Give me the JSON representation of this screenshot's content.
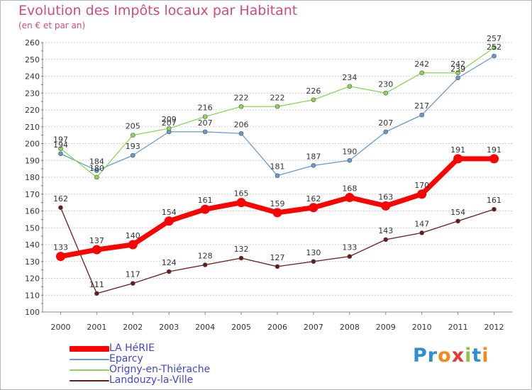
{
  "header": {
    "title": "Evolution des Impôts locaux par Habitant",
    "subtitle": "(en € et par an)"
  },
  "logo": {
    "text": "Proxiti",
    "letter_colors": [
      "#2b8fd1",
      "#2b8fd1",
      "#f08a1c",
      "#e53935",
      "#8cc63f",
      "#2b8fd1",
      "#f08a1c"
    ]
  },
  "chart_data": {
    "type": "line",
    "x": [
      "2000",
      "2001",
      "2002",
      "2003",
      "2004",
      "2005",
      "2006",
      "2007",
      "2008",
      "2009",
      "2010",
      "2011",
      "2012"
    ],
    "ylim": [
      100,
      260
    ],
    "yticks": [
      100,
      110,
      120,
      130,
      140,
      150,
      160,
      170,
      180,
      190,
      200,
      210,
      220,
      230,
      240,
      250,
      260
    ],
    "grid": "horizontal",
    "legend_position": "bottom-left",
    "series": [
      {
        "name": "LA HéRIE",
        "color": "#ff0000",
        "values": [
          133,
          137,
          140,
          154,
          161,
          165,
          159,
          162,
          168,
          163,
          170,
          191,
          191
        ]
      },
      {
        "name": "Eparcy",
        "color": "#6699cc",
        "values": [
          194,
          184,
          193,
          207,
          207,
          206,
          181,
          187,
          190,
          207,
          217,
          239,
          252
        ]
      },
      {
        "name": "Origny-en-Thiérache",
        "color": "#8cd45a",
        "values": [
          197,
          180,
          205,
          209,
          216,
          222,
          222,
          226,
          234,
          230,
          242,
          242,
          257
        ]
      },
      {
        "name": "Landouzy-la-Ville",
        "color": "#6b1a1a",
        "values": [
          162,
          111,
          117,
          124,
          128,
          132,
          127,
          130,
          133,
          143,
          147,
          154,
          161
        ]
      }
    ]
  }
}
